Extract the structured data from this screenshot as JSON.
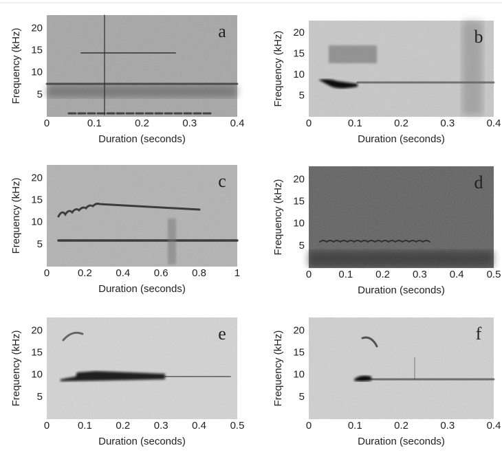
{
  "chart_data": [
    {
      "type": "spectrogram",
      "label": "a",
      "xlabel": "Duration (seconds)",
      "ylabel": "Frequency (kHz)",
      "background": "#a4a4a4",
      "xlim": [
        0,
        0.4
      ],
      "xticks": [
        0,
        0.1,
        0.2,
        0.3,
        0.4
      ],
      "ylim": [
        0,
        23
      ],
      "yticks": [
        5,
        10,
        15,
        20
      ]
    },
    {
      "type": "spectrogram",
      "label": "b",
      "xlabel": "Duration (seconds)",
      "ylabel": "Frequency (kHz)",
      "background": "#c9c9c9",
      "xlim": [
        0,
        0.4
      ],
      "xticks": [
        0,
        0.1,
        0.2,
        0.3,
        0.4
      ],
      "ylim": [
        0,
        23
      ],
      "yticks": [
        5,
        10,
        15,
        20
      ]
    },
    {
      "type": "spectrogram",
      "label": "c",
      "xlabel": "Duration (seconds)",
      "ylabel": "Frequency (kHz)",
      "background": "#b2b2b2",
      "xlim": [
        0,
        1
      ],
      "xticks": [
        0,
        0.2,
        0.4,
        0.6,
        0.8,
        1
      ],
      "ylim": [
        0,
        23
      ],
      "yticks": [
        5,
        10,
        15,
        20
      ]
    },
    {
      "type": "spectrogram",
      "label": "d",
      "xlabel": "Duration (seconds)",
      "ylabel": "Frequency (kHz)",
      "background": "#5a5a5a",
      "xlim": [
        0,
        0.5
      ],
      "xticks": [
        0,
        0.1,
        0.2,
        0.3,
        0.4,
        0.5
      ],
      "ylim": [
        0,
        23
      ],
      "yticks": [
        5,
        10,
        15,
        20
      ]
    },
    {
      "type": "spectrogram",
      "label": "e",
      "xlabel": "Duration (seconds)",
      "ylabel": "Frequency (kHz)",
      "background": "#d6d6d6",
      "xlim": [
        0,
        0.5
      ],
      "xticks": [
        0,
        0.1,
        0.2,
        0.3,
        0.4,
        0.5
      ],
      "ylim": [
        0,
        23
      ],
      "yticks": [
        5,
        10,
        15,
        20
      ]
    },
    {
      "type": "spectrogram",
      "label": "f",
      "xlabel": "Duration (seconds)",
      "ylabel": "Frequency (kHz)",
      "background": "#d2d2d2",
      "xlim": [
        0,
        0.4
      ],
      "xticks": [
        0,
        0.1,
        0.2,
        0.3,
        0.4
      ],
      "ylim": [
        0,
        23
      ],
      "yticks": [
        5,
        10,
        15,
        20
      ]
    }
  ]
}
